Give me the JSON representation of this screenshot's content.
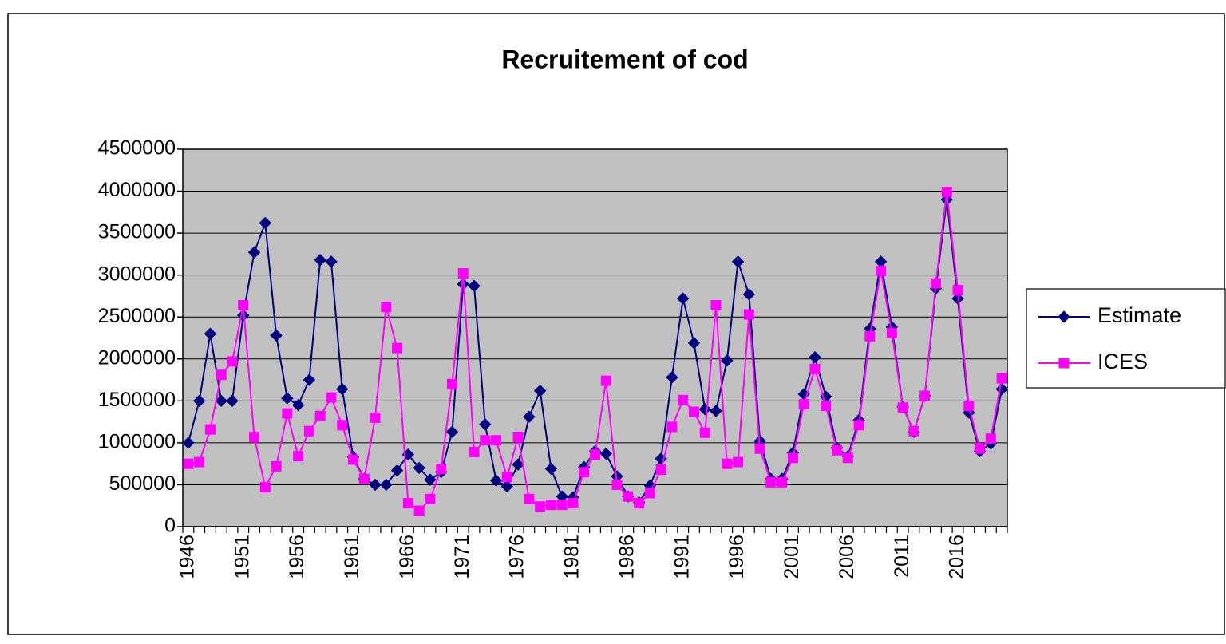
{
  "chart_data": {
    "type": "line",
    "title": "Recruitement of cod",
    "categories": [
      "1946",
      null,
      null,
      null,
      null,
      "1951",
      null,
      null,
      null,
      null,
      "1956",
      null,
      null,
      null,
      null,
      "1961",
      null,
      null,
      null,
      null,
      "1966",
      null,
      null,
      null,
      null,
      "1971",
      null,
      null,
      null,
      null,
      "1976",
      null,
      null,
      null,
      null,
      "1981",
      null,
      null,
      null,
      null,
      "1986",
      null,
      null,
      null,
      null,
      "1991",
      null,
      null,
      null,
      null,
      "1996",
      null,
      null,
      null,
      null,
      "2001",
      null,
      null,
      null,
      null,
      "2006",
      null,
      null,
      null,
      null,
      "2011",
      null,
      null,
      null,
      null,
      "2016",
      null,
      null,
      null,
      null
    ],
    "series": [
      {
        "name": "Estimate",
        "color": "#000080",
        "marker": "diamond",
        "values": [
          1000000,
          1500000,
          2300000,
          1500000,
          1500000,
          2520000,
          3270000,
          3620000,
          2280000,
          1530000,
          1450000,
          1750000,
          3180000,
          3160000,
          1640000,
          830000,
          570000,
          500000,
          500000,
          670000,
          860000,
          700000,
          560000,
          650000,
          1130000,
          2890000,
          2870000,
          1220000,
          550000,
          480000,
          740000,
          1310000,
          1620000,
          690000,
          360000,
          350000,
          710000,
          900000,
          870000,
          600000,
          360000,
          290000,
          490000,
          810000,
          1780000,
          2720000,
          2190000,
          1400000,
          1380000,
          1980000,
          3160000,
          2770000,
          1020000,
          570000,
          570000,
          880000,
          1580000,
          2020000,
          1550000,
          940000,
          840000,
          1270000,
          2360000,
          3160000,
          2380000,
          1430000,
          1130000,
          1560000,
          2840000,
          3900000,
          2720000,
          1360000,
          900000,
          990000,
          1640000
        ]
      },
      {
        "name": "ICES",
        "color": "#ff00ff",
        "marker": "square",
        "values": [
          750000,
          770000,
          1160000,
          1810000,
          1970000,
          2640000,
          1070000,
          470000,
          720000,
          1350000,
          840000,
          1140000,
          1320000,
          1540000,
          1210000,
          800000,
          570000,
          1300000,
          2620000,
          2130000,
          280000,
          190000,
          330000,
          690000,
          1700000,
          3020000,
          890000,
          1030000,
          1030000,
          590000,
          1070000,
          330000,
          240000,
          260000,
          260000,
          280000,
          650000,
          860000,
          1740000,
          500000,
          360000,
          280000,
          400000,
          680000,
          1190000,
          1510000,
          1370000,
          1120000,
          2640000,
          750000,
          770000,
          2530000,
          930000,
          530000,
          530000,
          820000,
          1460000,
          1880000,
          1440000,
          910000,
          820000,
          1210000,
          2270000,
          3050000,
          2310000,
          1420000,
          1140000,
          1560000,
          2900000,
          3990000,
          2820000,
          1440000,
          930000,
          1050000,
          1770000
        ]
      }
    ],
    "ylim": [
      0,
      4500000
    ],
    "yticks": [
      0,
      500000,
      1000000,
      1500000,
      2000000,
      2500000,
      3000000,
      3500000,
      4000000,
      4500000
    ],
    "grid": true,
    "plot_background": "#c0c0c0",
    "legend": "right"
  }
}
